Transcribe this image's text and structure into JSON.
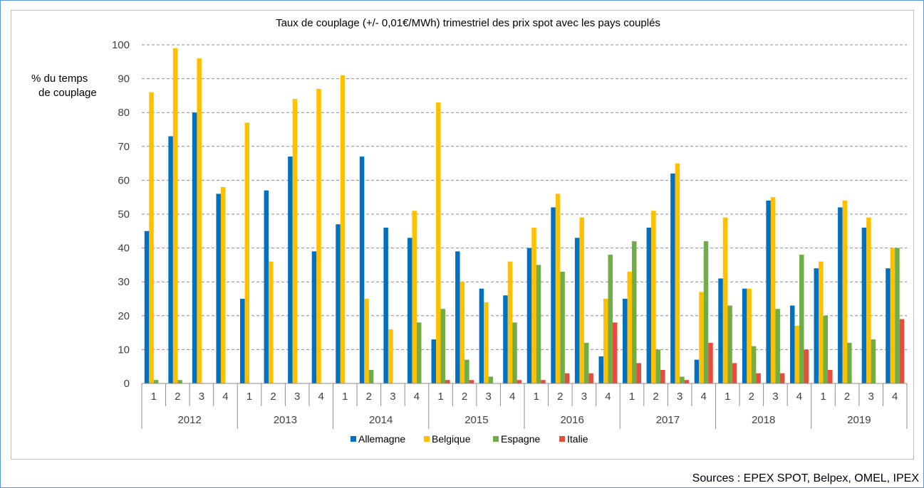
{
  "source_text": "Sources : EPEX SPOT, Belpex, OMEL, IPEX",
  "chart_data": {
    "type": "bar",
    "title": "Taux de couplage (+/- 0,01€/MWh) trimestriel des prix spot avec les pays couplés",
    "ylabel_lines": [
      "% du temps",
      "de couplage"
    ],
    "ylim": [
      0,
      100
    ],
    "yticks": [
      0,
      10,
      20,
      30,
      40,
      50,
      60,
      70,
      80,
      90,
      100
    ],
    "grid": true,
    "legend_position": "bottom",
    "years": [
      "2012",
      "2013",
      "2014",
      "2015",
      "2016",
      "2017",
      "2018",
      "2019"
    ],
    "quarters": [
      "1",
      "2",
      "3",
      "4"
    ],
    "series": [
      {
        "name": "Allemagne",
        "color": "#0070c0",
        "values": [
          45,
          73,
          80,
          56,
          25,
          57,
          67,
          39,
          47,
          67,
          46,
          43,
          13,
          39,
          28,
          26,
          40,
          52,
          43,
          8,
          25,
          46,
          62,
          7,
          31,
          28,
          54,
          23,
          34,
          52,
          46,
          34
        ]
      },
      {
        "name": "Belgique",
        "color": "#ffc000",
        "values": [
          86,
          99,
          96,
          58,
          77,
          36,
          84,
          87,
          91,
          25,
          16,
          51,
          83,
          30,
          24,
          36,
          46,
          56,
          49,
          25,
          33,
          51,
          65,
          27,
          49,
          28,
          55,
          17,
          36,
          54,
          49,
          40
        ]
      },
      {
        "name": "Espagne",
        "color": "#70ad47",
        "values": [
          1,
          1,
          0,
          0,
          0,
          0,
          0,
          0,
          0,
          4,
          0,
          18,
          22,
          7,
          2,
          18,
          35,
          33,
          12,
          38,
          42,
          10,
          2,
          42,
          23,
          11,
          22,
          38,
          20,
          12,
          13,
          40
        ]
      },
      {
        "name": "Italie",
        "color": "#e84c3d",
        "values": [
          0,
          0,
          0,
          0,
          0,
          0,
          0,
          0,
          0,
          0,
          0,
          0,
          1,
          1,
          0,
          1,
          1,
          3,
          3,
          18,
          6,
          4,
          1,
          12,
          6,
          3,
          3,
          10,
          4,
          0,
          0,
          19
        ]
      }
    ]
  }
}
